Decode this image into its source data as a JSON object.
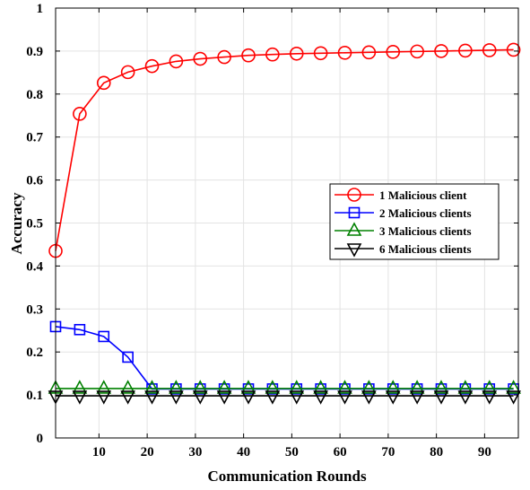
{
  "chart_data": {
    "type": "line",
    "title": "",
    "xlabel": "Communication Rounds",
    "ylabel": "Accuracy",
    "xlim": [
      1,
      97
    ],
    "ylim": [
      0,
      1
    ],
    "xticks": [
      10,
      20,
      30,
      40,
      50,
      60,
      70,
      80,
      90
    ],
    "yticks": [
      0,
      0.1,
      0.2,
      0.3,
      0.4,
      0.5,
      0.6,
      0.7,
      0.8,
      0.9,
      1
    ],
    "ytick_labels": [
      "0",
      "0.1",
      "0.2",
      "0.3",
      "0.4",
      "0.5",
      "0.6",
      "0.7",
      "0.8",
      "0.9",
      "1"
    ],
    "grid": true,
    "legend_position": "right-middle",
    "x": [
      1,
      6,
      11,
      16,
      21,
      26,
      31,
      36,
      41,
      46,
      51,
      56,
      61,
      66,
      71,
      76,
      81,
      86,
      91,
      96
    ],
    "series": [
      {
        "name": "1 Malicious client",
        "color": "#ff0000",
        "marker": "circle",
        "values": [
          0.435,
          0.754,
          0.826,
          0.851,
          0.865,
          0.876,
          0.882,
          0.886,
          0.89,
          0.892,
          0.894,
          0.895,
          0.896,
          0.897,
          0.898,
          0.899,
          0.9,
          0.901,
          0.902,
          0.903
        ]
      },
      {
        "name": "2 Malicious clients",
        "color": "#0000ff",
        "marker": "square",
        "values": [
          0.259,
          0.252,
          0.236,
          0.188,
          0.114,
          0.114,
          0.114,
          0.114,
          0.114,
          0.114,
          0.114,
          0.114,
          0.114,
          0.114,
          0.114,
          0.114,
          0.114,
          0.114,
          0.114,
          0.114
        ]
      },
      {
        "name": "3 Malicious clients",
        "color": "#008000",
        "marker": "triangle-up",
        "values": [
          0.115,
          0.115,
          0.115,
          0.115,
          0.115,
          0.115,
          0.115,
          0.115,
          0.115,
          0.115,
          0.115,
          0.115,
          0.115,
          0.115,
          0.115,
          0.115,
          0.115,
          0.115,
          0.115,
          0.115
        ]
      },
      {
        "name": "6 Malicious clients",
        "color": "#000000",
        "marker": "triangle-down",
        "values": [
          0.098,
          0.098,
          0.098,
          0.098,
          0.098,
          0.098,
          0.098,
          0.098,
          0.098,
          0.098,
          0.098,
          0.098,
          0.098,
          0.098,
          0.098,
          0.098,
          0.098,
          0.098,
          0.098,
          0.098
        ]
      }
    ]
  }
}
